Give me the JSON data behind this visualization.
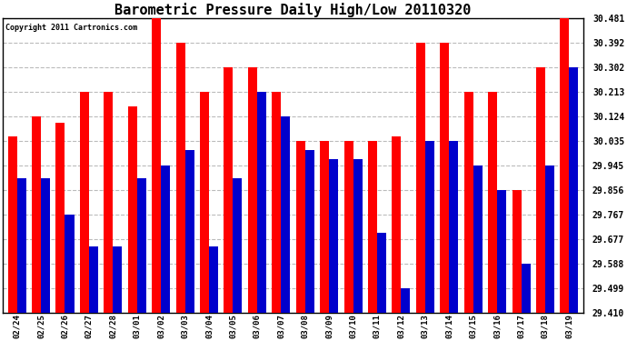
{
  "title": "Barometric Pressure Daily High/Low 20110320",
  "copyright": "Copyright 2011 Cartronics.com",
  "dates": [
    "02/24",
    "02/25",
    "02/26",
    "02/27",
    "02/28",
    "03/01",
    "03/02",
    "03/03",
    "03/04",
    "03/05",
    "03/06",
    "03/07",
    "03/08",
    "03/09",
    "03/10",
    "03/11",
    "03/12",
    "03/13",
    "03/14",
    "03/15",
    "03/16",
    "03/17",
    "03/18",
    "03/19"
  ],
  "highs": [
    30.05,
    30.124,
    30.1,
    30.213,
    30.213,
    30.16,
    30.481,
    30.392,
    30.213,
    30.302,
    30.302,
    30.213,
    30.035,
    30.035,
    30.035,
    30.035,
    30.05,
    30.392,
    30.392,
    30.213,
    30.213,
    29.856,
    30.302,
    30.481
  ],
  "lows": [
    29.9,
    29.9,
    29.767,
    29.65,
    29.65,
    29.9,
    29.945,
    30.0,
    29.65,
    29.9,
    30.213,
    30.124,
    30.0,
    29.97,
    29.97,
    29.7,
    29.499,
    30.035,
    30.035,
    29.945,
    29.856,
    29.59,
    29.945,
    30.302
  ],
  "high_color": "#ff0000",
  "low_color": "#0000cc",
  "background_color": "#ffffff",
  "grid_color": "#bbbbbb",
  "title_fontsize": 11,
  "ymin": 29.41,
  "ymax": 30.481,
  "yticks": [
    29.41,
    29.499,
    29.588,
    29.677,
    29.767,
    29.856,
    29.945,
    30.035,
    30.124,
    30.213,
    30.302,
    30.392,
    30.481
  ]
}
